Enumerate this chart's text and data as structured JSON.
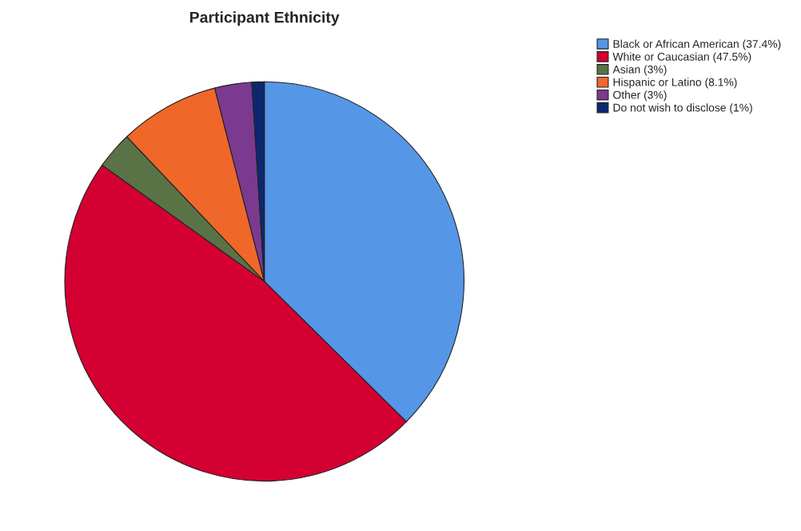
{
  "chart_data": {
    "type": "pie",
    "title": "Participant Ethnicity",
    "categories": [
      "Black or African American (37.4%)",
      "White or Caucasian (47.5%)",
      "Asian (3%)",
      "Hispanic or Latino (8.1%)",
      "Other (3%)",
      "Do not wish to disclose (1%)"
    ],
    "values": [
      37.4,
      47.5,
      3,
      8.1,
      3,
      1
    ],
    "colors": [
      "#5596e6",
      "#d50032",
      "#5a7346",
      "#f0672a",
      "#7b3a8f",
      "#0d2870"
    ],
    "legend": "top right"
  }
}
